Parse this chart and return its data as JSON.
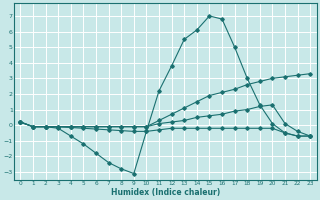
{
  "xlabel": "Humidex (Indice chaleur)",
  "background_color": "#c8e8e8",
  "grid_color": "#ffffff",
  "line_color": "#1a7070",
  "xlim": [
    -0.5,
    23.5
  ],
  "ylim": [
    -3.5,
    7.8
  ],
  "xticks": [
    0,
    1,
    2,
    3,
    4,
    5,
    6,
    7,
    8,
    9,
    10,
    11,
    12,
    13,
    14,
    15,
    16,
    17,
    18,
    19,
    20,
    21,
    22,
    23
  ],
  "yticks": [
    -3,
    -2,
    -1,
    0,
    1,
    2,
    3,
    4,
    5,
    6,
    7
  ],
  "lines": [
    {
      "x": [
        0,
        1,
        2,
        3,
        4,
        5,
        6,
        7,
        8,
        9,
        10,
        11,
        12,
        13,
        14,
        15,
        16,
        17,
        18,
        19,
        20,
        21,
        22,
        23
      ],
      "y": [
        0.2,
        -0.1,
        -0.1,
        -0.1,
        -0.15,
        -0.2,
        -0.25,
        -0.3,
        -0.35,
        -0.4,
        -0.4,
        2.2,
        3.8,
        5.5,
        6.1,
        7.0,
        6.8,
        5.0,
        3.0,
        1.3,
        0.1,
        -0.5,
        -0.7,
        -0.7
      ]
    },
    {
      "x": [
        0,
        1,
        2,
        3,
        4,
        5,
        6,
        7,
        8,
        9,
        10,
        11,
        12,
        13,
        14,
        15,
        16,
        17,
        18,
        19,
        20,
        21,
        22,
        23
      ],
      "y": [
        0.2,
        -0.1,
        -0.1,
        -0.2,
        -0.7,
        -1.2,
        -1.8,
        -2.4,
        -2.8,
        -3.1,
        -0.4,
        -0.3,
        -0.2,
        -0.2,
        -0.2,
        -0.2,
        -0.2,
        -0.2,
        -0.2,
        -0.2,
        -0.2,
        -0.5,
        -0.7,
        -0.7
      ]
    },
    {
      "x": [
        0,
        1,
        2,
        3,
        4,
        5,
        6,
        7,
        8,
        9,
        10,
        11,
        12,
        13,
        14,
        15,
        16,
        17,
        18,
        19,
        20,
        21,
        22,
        23
      ],
      "y": [
        0.2,
        -0.1,
        -0.1,
        -0.1,
        -0.1,
        -0.1,
        -0.1,
        -0.1,
        -0.1,
        -0.1,
        -0.1,
        0.3,
        0.7,
        1.1,
        1.5,
        1.9,
        2.1,
        2.3,
        2.6,
        2.8,
        3.0,
        3.1,
        3.2,
        3.3
      ]
    },
    {
      "x": [
        0,
        1,
        2,
        3,
        4,
        5,
        6,
        7,
        8,
        9,
        10,
        11,
        12,
        13,
        14,
        15,
        16,
        17,
        18,
        19,
        20,
        21,
        22,
        23
      ],
      "y": [
        0.2,
        -0.1,
        -0.1,
        -0.1,
        -0.1,
        -0.1,
        -0.1,
        -0.1,
        -0.1,
        -0.1,
        -0.1,
        0.1,
        0.2,
        0.3,
        0.5,
        0.6,
        0.7,
        0.9,
        1.0,
        1.2,
        1.3,
        0.1,
        -0.4,
        -0.7
      ]
    }
  ]
}
